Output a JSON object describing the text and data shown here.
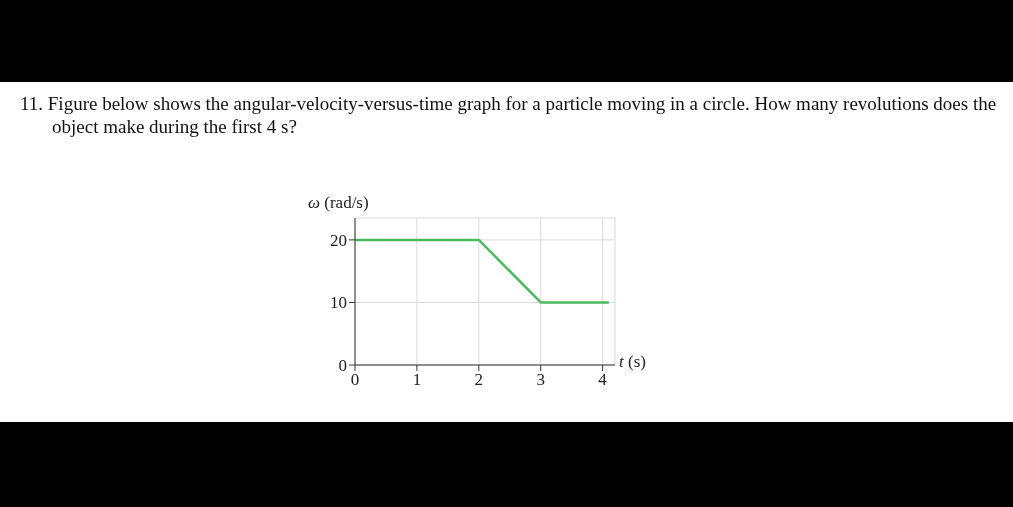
{
  "chart_data": {
    "type": "line",
    "title": "11. Figure below shows the angular-velocity-versus-time graph for a particle moving in a circle. How many revolutions does the object make during the first 4 s?",
    "xlabel": "t (s)",
    "ylabel": "ω (rad/s)",
    "x": [
      0,
      2,
      3,
      4.1
    ],
    "series": [
      {
        "color": "#4cb963",
        "values": [
          20,
          20,
          10,
          10
        ]
      }
    ],
    "xlim": [
      0,
      4.2
    ],
    "xticks": [
      0,
      1,
      2,
      3,
      4
    ],
    "ylim": [
      0,
      23.5
    ],
    "yticks": [
      0,
      10,
      20
    ],
    "grid": true,
    "legend": false,
    "marker": "none",
    "line_style": "solid"
  }
}
